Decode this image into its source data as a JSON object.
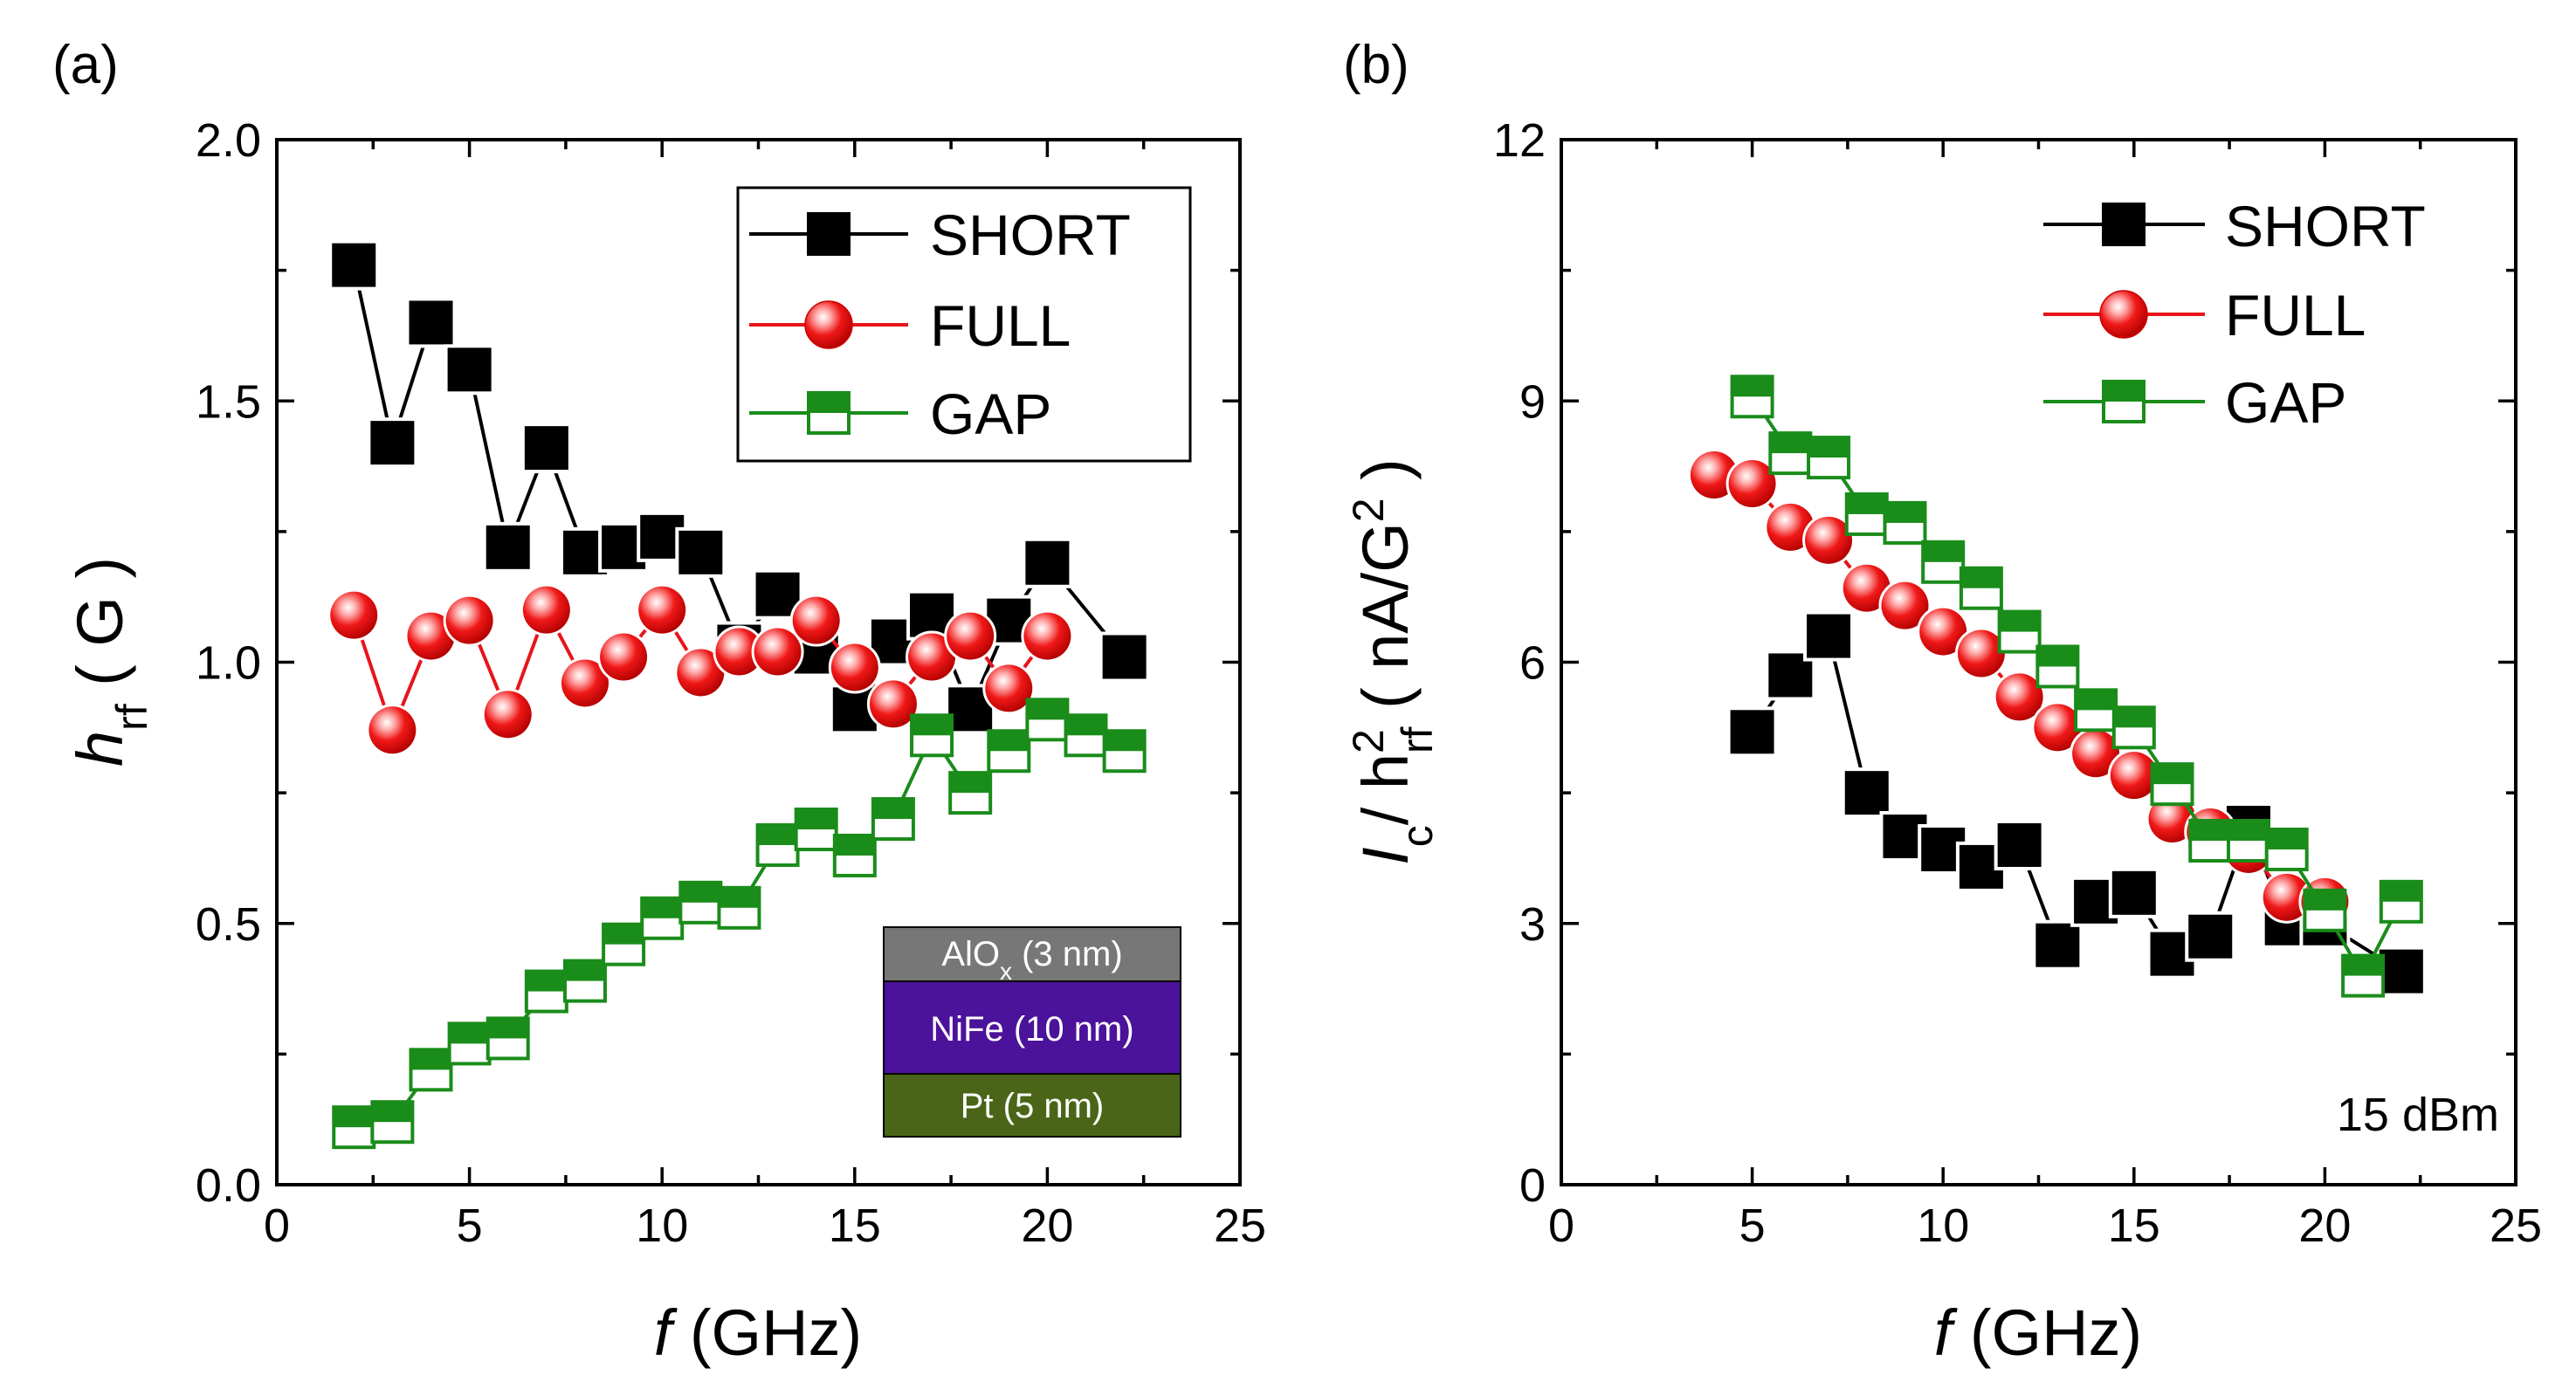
{
  "chart_data": [
    {
      "type": "line",
      "panel_label": "(a)",
      "xlabel_italic": "f",
      "xlabel_rest": " (GHz)",
      "ylabel_main": "h",
      "ylabel_sub": "rf",
      "ylabel_unit": "  ( G )",
      "xlim": [
        0,
        25
      ],
      "ylim": [
        0,
        2.0
      ],
      "xticks": [
        0,
        5,
        10,
        15,
        20,
        25
      ],
      "xtick_labels": [
        "0",
        "5",
        "10",
        "15",
        "20",
        "25"
      ],
      "yticks": [
        0,
        0.5,
        1.0,
        1.5,
        2.0
      ],
      "ytick_labels": [
        "0.0",
        "0.5",
        "1.0",
        "1.5",
        "2.0"
      ],
      "legend_position": "top-right",
      "series": [
        {
          "name": "SHORT",
          "marker": "square",
          "color": "#000000",
          "x": [
            2,
            3,
            4,
            5,
            6,
            7,
            8,
            9,
            10,
            11,
            12,
            13,
            14,
            15,
            16,
            17,
            18,
            19,
            20,
            22
          ],
          "y": [
            1.76,
            1.42,
            1.65,
            1.56,
            1.22,
            1.41,
            1.21,
            1.22,
            1.24,
            1.21,
            1.03,
            1.13,
            1.02,
            0.91,
            1.04,
            1.09,
            0.91,
            1.08,
            1.19,
            1.01
          ]
        },
        {
          "name": "FULL",
          "marker": "circle",
          "color": "#e8141a",
          "x": [
            2,
            3,
            4,
            5,
            6,
            7,
            8,
            9,
            10,
            11,
            12,
            13,
            14,
            15,
            16,
            17,
            18,
            19,
            20
          ],
          "y": [
            1.09,
            0.87,
            1.05,
            1.08,
            0.9,
            1.1,
            0.96,
            1.01,
            1.1,
            0.98,
            1.02,
            1.02,
            1.08,
            0.99,
            0.92,
            1.01,
            1.05,
            0.95,
            1.05
          ]
        },
        {
          "name": "GAP",
          "marker": "half-square",
          "color": "#1a8c1a",
          "x": [
            2,
            3,
            4,
            5,
            6,
            7,
            8,
            9,
            10,
            11,
            12,
            13,
            14,
            15,
            16,
            17,
            18,
            19,
            20,
            21,
            22
          ],
          "y": [
            0.11,
            0.12,
            0.22,
            0.27,
            0.28,
            0.37,
            0.39,
            0.46,
            0.51,
            0.54,
            0.53,
            0.65,
            0.68,
            0.63,
            0.7,
            0.86,
            0.75,
            0.83,
            0.89,
            0.86,
            0.83
          ]
        }
      ],
      "inset_stack": [
        {
          "label_main": "AlO",
          "label_sub": "x",
          "label_rest": " (3 nm)",
          "color": "#777777"
        },
        {
          "label_main": "NiFe (10 nm)",
          "label_sub": "",
          "label_rest": "",
          "color": "#4b129b"
        },
        {
          "label_main": "Pt (5 nm)",
          "label_sub": "",
          "label_rest": "",
          "color": "#4a6518"
        }
      ]
    },
    {
      "type": "line",
      "panel_label": "(b)",
      "xlabel_italic": "f",
      "xlabel_rest": " (GHz)",
      "ylabel_main": "I",
      "ylabel_sub": "c",
      "ylabel_slash": "/ h",
      "ylabel_sup": "2",
      "ylabel_sub2": "rf",
      "ylabel_unit": " ( nA/G",
      "ylabel_unit_sup": "2",
      "ylabel_unit_end": " )",
      "xlim": [
        0,
        25
      ],
      "ylim": [
        0,
        12
      ],
      "xticks": [
        0,
        5,
        10,
        15,
        20,
        25
      ],
      "xtick_labels": [
        "0",
        "5",
        "10",
        "15",
        "20",
        "25"
      ],
      "yticks": [
        0,
        3,
        6,
        9,
        12
      ],
      "ytick_labels": [
        "0",
        "3",
        "6",
        "9",
        "12"
      ],
      "legend_position": "top-right",
      "annotation": "15 dBm",
      "series": [
        {
          "name": "SHORT",
          "marker": "square",
          "color": "#000000",
          "x": [
            5,
            6,
            7,
            8,
            9,
            10,
            11,
            12,
            13,
            14,
            15,
            16,
            17,
            18,
            19,
            20,
            22
          ],
          "y": [
            5.2,
            5.85,
            6.3,
            4.5,
            4.0,
            3.85,
            3.65,
            3.9,
            2.75,
            3.25,
            3.35,
            2.65,
            2.85,
            4.1,
            3.0,
            3.0,
            2.45
          ]
        },
        {
          "name": "FULL",
          "marker": "circle",
          "color": "#e8141a",
          "x": [
            4,
            5,
            6,
            7,
            8,
            9,
            10,
            11,
            12,
            13,
            14,
            15,
            16,
            17,
            18,
            19,
            20
          ],
          "y": [
            8.15,
            8.05,
            7.55,
            7.4,
            6.85,
            6.65,
            6.35,
            6.1,
            5.6,
            5.25,
            4.95,
            4.7,
            4.2,
            4.05,
            3.85,
            3.3,
            3.25
          ]
        },
        {
          "name": "GAP",
          "marker": "half-square",
          "color": "#1a8c1a",
          "x": [
            5,
            6,
            7,
            8,
            9,
            10,
            11,
            12,
            13,
            14,
            15,
            16,
            17,
            18,
            19,
            20,
            21,
            22
          ],
          "y": [
            9.05,
            8.4,
            8.35,
            7.7,
            7.6,
            7.15,
            6.85,
            6.35,
            5.95,
            5.45,
            5.25,
            4.6,
            3.95,
            3.95,
            3.85,
            3.15,
            2.4,
            3.25
          ]
        }
      ]
    }
  ]
}
